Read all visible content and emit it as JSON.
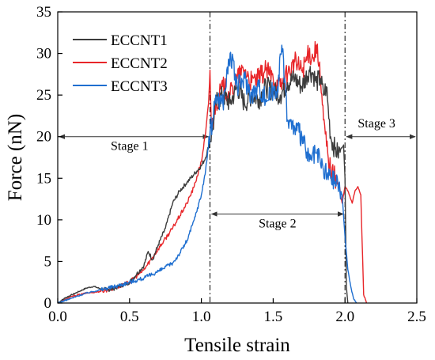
{
  "chart_data": {
    "type": "line",
    "title": "",
    "xlabel": "Tensile strain",
    "ylabel": "Force (nN)",
    "xlim": [
      0,
      2.5
    ],
    "ylim": [
      0,
      35
    ],
    "xticks": [
      "0.0",
      "0.5",
      "1.0",
      "1.5",
      "2.0",
      "2.5"
    ],
    "yticks": [
      "0",
      "5",
      "10",
      "15",
      "20",
      "25",
      "30",
      "35"
    ],
    "grid": false,
    "legend_position": "top-left",
    "series": [
      {
        "name": "ECCNT1",
        "color": "#3c3c3c",
        "x": [
          0.0,
          0.05,
          0.1,
          0.15,
          0.2,
          0.25,
          0.3,
          0.35,
          0.4,
          0.5,
          0.55,
          0.6,
          0.63,
          0.66,
          0.7,
          0.75,
          0.8,
          0.85,
          0.9,
          0.95,
          1.0,
          1.03,
          1.06,
          1.08,
          1.1,
          1.15,
          1.2,
          1.25,
          1.3,
          1.35,
          1.4,
          1.45,
          1.5,
          1.55,
          1.6,
          1.65,
          1.7,
          1.75,
          1.78,
          1.8,
          1.83,
          1.85,
          1.87,
          1.9,
          1.93,
          1.95,
          1.97,
          1.99,
          2.0,
          2.01,
          2.02
        ],
        "values": [
          0.0,
          0.6,
          1.0,
          1.4,
          1.8,
          2.0,
          1.7,
          1.6,
          1.8,
          2.5,
          3.5,
          4.5,
          6.2,
          5.2,
          7.0,
          9.0,
          12.0,
          13.5,
          14.5,
          15.5,
          16.5,
          17.5,
          19.5,
          21.0,
          24.0,
          25.0,
          24.0,
          26.0,
          24.0,
          25.0,
          24.5,
          26.0,
          25.5,
          25.0,
          26.5,
          27.0,
          26.0,
          28.0,
          27.5,
          26.5,
          27.0,
          25.0,
          26.0,
          20.0,
          18.5,
          18.0,
          18.5,
          19.0,
          15.0,
          2.0,
          0.0
        ]
      },
      {
        "name": "ECCNT2",
        "color": "#e8262a",
        "x": [
          0.0,
          0.1,
          0.2,
          0.3,
          0.4,
          0.5,
          0.6,
          0.7,
          0.8,
          0.9,
          0.95,
          1.0,
          1.03,
          1.05,
          1.06,
          1.07,
          1.1,
          1.15,
          1.2,
          1.25,
          1.3,
          1.35,
          1.4,
          1.45,
          1.5,
          1.55,
          1.6,
          1.65,
          1.7,
          1.75,
          1.78,
          1.8,
          1.82,
          1.85,
          1.88,
          1.9,
          1.95,
          1.98,
          2.0,
          2.02,
          2.05,
          2.07,
          2.09,
          2.11,
          2.13,
          2.15
        ],
        "values": [
          0.0,
          0.8,
          1.2,
          1.4,
          1.8,
          2.5,
          4.0,
          6.5,
          9.0,
          12.0,
          14.0,
          17.0,
          20.5,
          24.0,
          28.0,
          21.0,
          24.0,
          26.0,
          25.0,
          27.0,
          28.0,
          26.5,
          27.0,
          28.0,
          27.0,
          26.0,
          27.5,
          29.0,
          28.0,
          30.0,
          29.5,
          31.0,
          28.5,
          22.0,
          18.0,
          16.0,
          14.5,
          12.0,
          14.0,
          13.5,
          12.0,
          13.5,
          14.0,
          13.0,
          1.0,
          0.0
        ]
      },
      {
        "name": "ECCNT3",
        "color": "#1f6fd0",
        "x": [
          0.0,
          0.1,
          0.2,
          0.3,
          0.4,
          0.5,
          0.6,
          0.7,
          0.8,
          0.85,
          0.9,
          0.95,
          1.0,
          1.03,
          1.06,
          1.08,
          1.1,
          1.15,
          1.2,
          1.25,
          1.3,
          1.35,
          1.4,
          1.45,
          1.5,
          1.53,
          1.56,
          1.58,
          1.6,
          1.65,
          1.7,
          1.75,
          1.8,
          1.85,
          1.9,
          1.95,
          1.98,
          2.0,
          2.02,
          2.04,
          2.06,
          2.08
        ],
        "values": [
          0.0,
          0.6,
          1.2,
          1.6,
          2.0,
          2.5,
          3.0,
          3.8,
          4.8,
          6.0,
          7.5,
          10.0,
          13.0,
          16.0,
          20.5,
          22.0,
          25.0,
          24.0,
          30.0,
          26.0,
          27.0,
          25.0,
          26.0,
          24.5,
          25.5,
          26.0,
          31.0,
          27.0,
          22.0,
          21.0,
          20.0,
          17.0,
          18.0,
          16.0,
          15.0,
          14.5,
          13.0,
          8.0,
          4.0,
          2.0,
          0.5,
          0.0
        ]
      }
    ],
    "annotations": [
      {
        "type": "vline",
        "x": 1.06
      },
      {
        "type": "vline",
        "x": 2.0
      },
      {
        "label": "Stage 1",
        "x_start": 0.0,
        "x_end": 1.06,
        "y": 20.0,
        "label_x": 0.5,
        "label_y": 18.4
      },
      {
        "label": "Stage 2",
        "x_start": 1.06,
        "x_end": 2.0,
        "y": 10.7,
        "label_x": 1.53,
        "label_y": 9.1
      },
      {
        "label": "Stage 3",
        "x_start": 2.0,
        "x_end": 2.5,
        "y": 20.0,
        "label_x": 2.22,
        "label_y": 21.1
      }
    ]
  }
}
